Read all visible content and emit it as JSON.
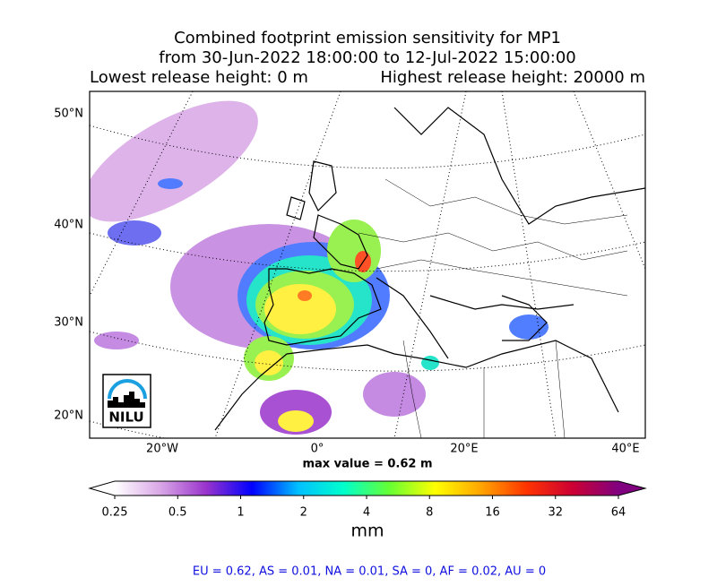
{
  "title_lines": [
    "Combined footprint emission sensitivity for MP1",
    "from 30-Jun-2022 18:00:00 to 12-Jul-2022 15:00:00"
  ],
  "release": {
    "lowest": "Lowest release height: 0 m",
    "highest": "Highest release height: 20000 m"
  },
  "map": {
    "lat_labels": [
      "50°N",
      "40°N",
      "30°N",
      "20°N"
    ],
    "lon_labels": [
      "20°W",
      "0°",
      "20°E",
      "40°E"
    ],
    "logo": "NILU"
  },
  "max_value": "max value = 0.62 m",
  "colorbar": {
    "unit": "mm",
    "log_base": 2,
    "lim": [
      0.25,
      64
    ],
    "ticks": [
      0.25,
      0.5,
      1,
      2,
      4,
      8,
      16,
      32,
      64
    ],
    "colors": [
      "#ffffff",
      "#d9a6e6",
      "#9933cc",
      "#0000ff",
      "#00bfff",
      "#00ffcc",
      "#66ff33",
      "#ffff00",
      "#ffa500",
      "#ff3300",
      "#cc0033",
      "#800080"
    ]
  },
  "footer": "EU = 0.62,  AS = 0.01,  NA = 0.01,  SA = 0,  AF = 0.02,  AU = 0"
}
